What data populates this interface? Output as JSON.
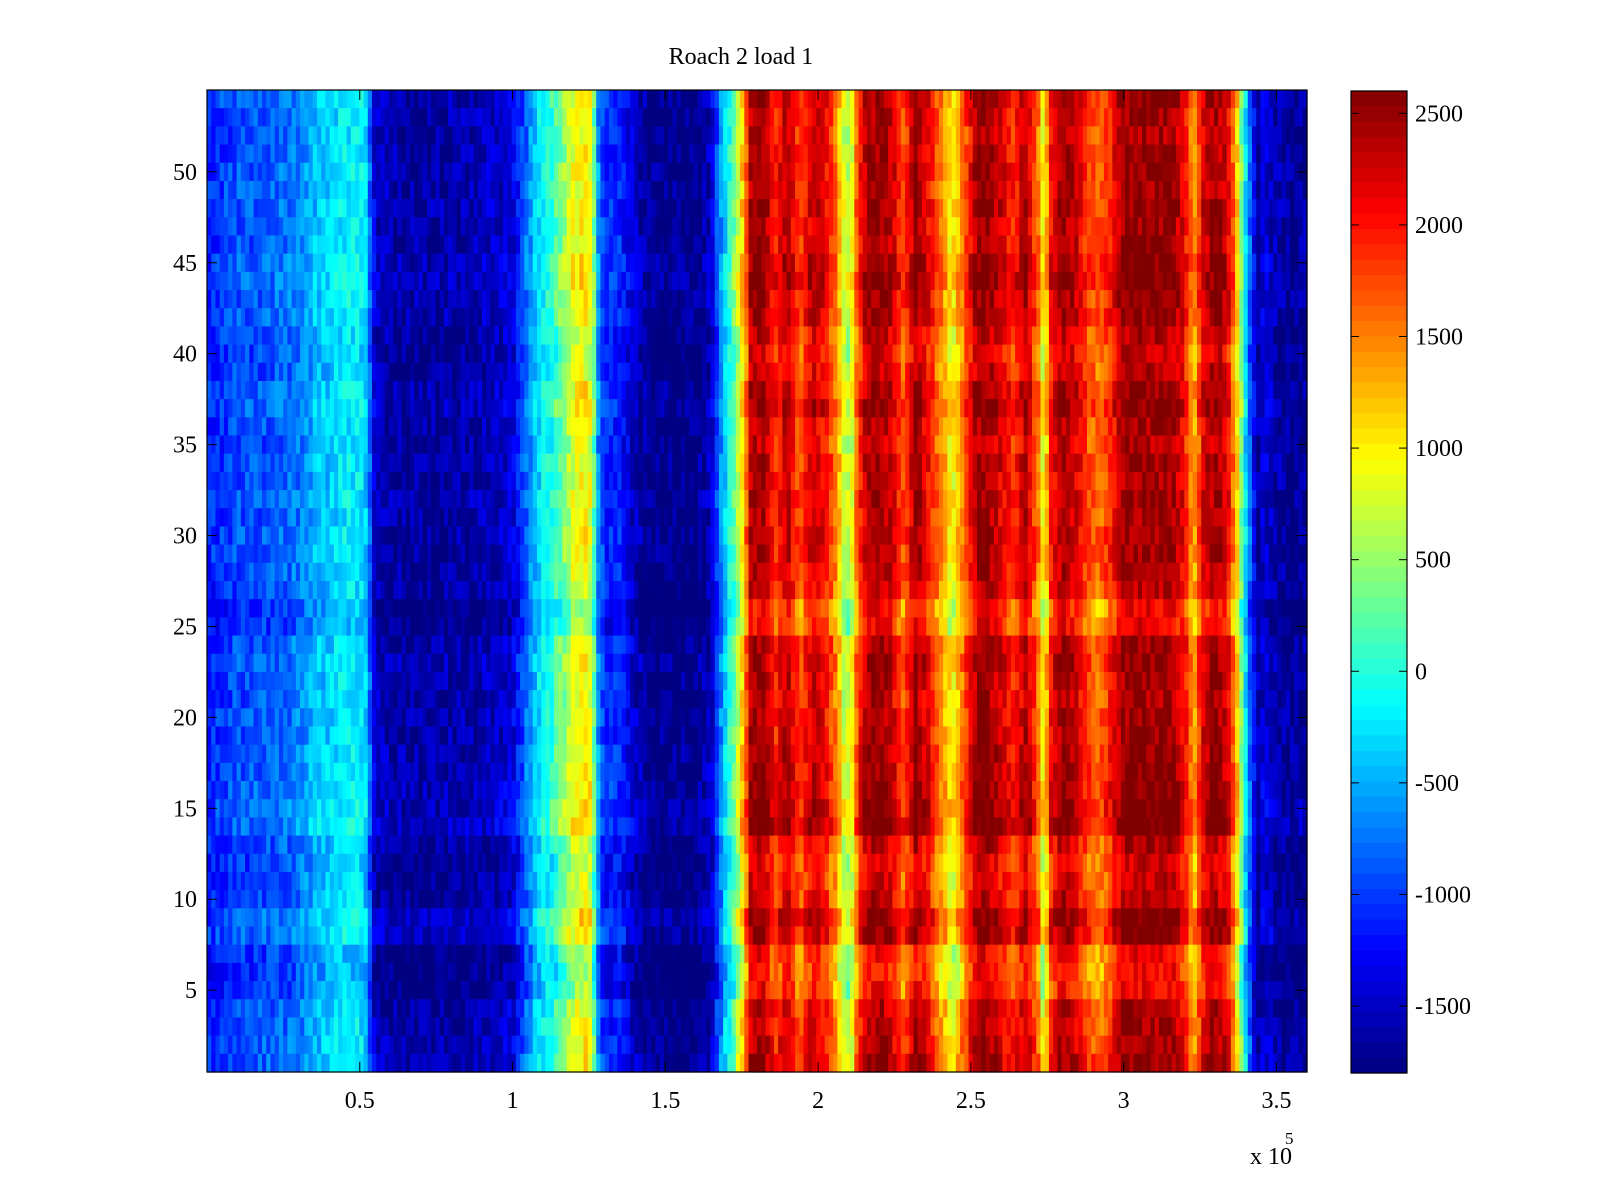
{
  "chart_data": {
    "type": "heatmap",
    "title": "Roach 2 load 1",
    "xlabel": "",
    "ylabel": "",
    "x_exponent_label": "x 10",
    "x_exponent_power": "5",
    "xlim": [
      0,
      3.6
    ],
    "ylim": [
      0.5,
      54.5
    ],
    "x_ticks": [
      {
        "value": 0.5,
        "label": "0.5"
      },
      {
        "value": 1.0,
        "label": "1"
      },
      {
        "value": 1.5,
        "label": "1.5"
      },
      {
        "value": 2.0,
        "label": "2"
      },
      {
        "value": 2.5,
        "label": "2.5"
      },
      {
        "value": 3.0,
        "label": "3"
      },
      {
        "value": 3.5,
        "label": "3.5"
      }
    ],
    "y_ticks": [
      {
        "value": 5,
        "label": "5"
      },
      {
        "value": 10,
        "label": "10"
      },
      {
        "value": 15,
        "label": "15"
      },
      {
        "value": 20,
        "label": "20"
      },
      {
        "value": 25,
        "label": "25"
      },
      {
        "value": 30,
        "label": "30"
      },
      {
        "value": 35,
        "label": "35"
      },
      {
        "value": 40,
        "label": "40"
      },
      {
        "value": 45,
        "label": "45"
      },
      {
        "value": 50,
        "label": "50"
      }
    ],
    "colorbar": {
      "clim": [
        -1800,
        2600
      ],
      "colormap": "jet",
      "ticks": [
        {
          "value": 2500,
          "label": "2500"
        },
        {
          "value": 2000,
          "label": "2000"
        },
        {
          "value": 1500,
          "label": "1500"
        },
        {
          "value": 1000,
          "label": "1000"
        },
        {
          "value": 500,
          "label": "500"
        },
        {
          "value": 0,
          "label": "0"
        },
        {
          "value": -500,
          "label": "-500"
        },
        {
          "value": -1000,
          "label": "-1000"
        },
        {
          "value": -1500,
          "label": "-1500"
        }
      ]
    },
    "column_profile": {
      "x": [
        0.0,
        0.05,
        0.1,
        0.15,
        0.2,
        0.25,
        0.3,
        0.35,
        0.4,
        0.45,
        0.5,
        0.52,
        0.55,
        0.6,
        0.65,
        0.7,
        0.75,
        0.8,
        0.85,
        0.9,
        0.95,
        1.0,
        1.05,
        1.08,
        1.12,
        1.16,
        1.2,
        1.24,
        1.26,
        1.28,
        1.3,
        1.35,
        1.4,
        1.45,
        1.5,
        1.55,
        1.6,
        1.65,
        1.68,
        1.7,
        1.73,
        1.76,
        1.78,
        1.82,
        1.86,
        1.9,
        1.94,
        1.98,
        2.02,
        2.06,
        2.09,
        2.11,
        2.13,
        2.16,
        2.2,
        2.24,
        2.28,
        2.32,
        2.36,
        2.4,
        2.44,
        2.48,
        2.52,
        2.56,
        2.6,
        2.64,
        2.68,
        2.72,
        2.74,
        2.76,
        2.8,
        2.84,
        2.88,
        2.92,
        2.96,
        3.0,
        3.04,
        3.08,
        3.12,
        3.16,
        3.2,
        3.23,
        3.26,
        3.3,
        3.34,
        3.37,
        3.4,
        3.42,
        3.44,
        3.46,
        3.5,
        3.55,
        3.6
      ],
      "values": [
        -1100,
        -1000,
        -900,
        -900,
        -850,
        -800,
        -700,
        -450,
        -350,
        -200,
        -200,
        -350,
        -1500,
        -1600,
        -1650,
        -1650,
        -1650,
        -1600,
        -1600,
        -1550,
        -1500,
        -1400,
        -700,
        -300,
        -50,
        350,
        850,
        1000,
        800,
        -600,
        -1100,
        -1100,
        -1500,
        -1750,
        -1750,
        -1750,
        -1750,
        -1500,
        -700,
        -200,
        400,
        1400,
        2400,
        2500,
        1900,
        2400,
        1700,
        2300,
        2100,
        1500,
        600,
        800,
        1800,
        2400,
        2500,
        2300,
        1700,
        2500,
        2100,
        1500,
        900,
        1700,
        2500,
        2500,
        2200,
        1900,
        2400,
        1600,
        700,
        2000,
        2500,
        2300,
        1800,
        1600,
        2000,
        2500,
        2500,
        2500,
        2500,
        2500,
        2100,
        1300,
        2200,
        2500,
        2200,
        1200,
        -300,
        -1100,
        -1600,
        -1400,
        -1600,
        -1700,
        -1700
      ]
    },
    "row_modulation": {
      "rows": [
        1,
        2,
        3,
        4,
        5,
        6,
        7,
        8,
        9,
        10,
        11,
        12,
        13,
        14,
        15,
        16,
        17,
        18,
        19,
        20,
        21,
        22,
        23,
        24,
        25,
        26,
        27,
        28,
        29,
        30,
        31,
        32,
        33,
        34,
        35,
        36,
        37,
        38,
        39,
        40,
        41,
        42,
        43,
        44,
        45,
        46,
        47,
        48,
        49,
        50,
        51,
        52,
        53,
        54
      ],
      "offsets": [
        0.05,
        0.0,
        -0.05,
        -0.05,
        -0.3,
        -0.35,
        -0.3,
        0.1,
        0.15,
        -0.1,
        -0.15,
        -0.2,
        -0.1,
        0.2,
        0.15,
        0.1,
        0.05,
        0.05,
        0.0,
        0.0,
        -0.05,
        0.0,
        0.05,
        0.0,
        -0.3,
        -0.35,
        -0.1,
        -0.05,
        0.0,
        0.0,
        -0.05,
        0.0,
        -0.05,
        0.0,
        -0.1,
        -0.05,
        0.1,
        0.05,
        -0.1,
        -0.15,
        -0.1,
        0.05,
        0.05,
        0.15,
        0.1,
        0.0,
        0.0,
        0.05,
        0.0,
        0.05,
        0.0,
        -0.05,
        0.0,
        0.05
      ]
    }
  }
}
